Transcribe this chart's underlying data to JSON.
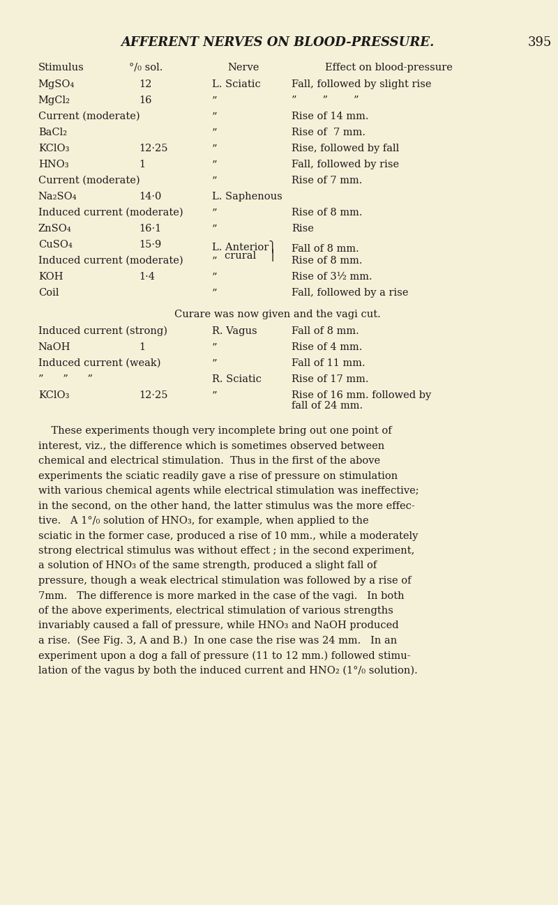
{
  "bg_color": "#f5f0d8",
  "text_color": "#1a1a1a",
  "page_title": "AFFERENT NERVES ON BLOOD-PRESSURE.",
  "page_number": "395",
  "col_headers": [
    "Stimulus",
    "°/₀ sol.",
    "Nerve",
    "Effect on blood-pressure"
  ],
  "table_rows": [
    {
      "stimulus": "MgSO₄",
      "sol": "12",
      "nerve": "L. Sciatic",
      "effect": "Fall, followed by slight rise"
    },
    {
      "stimulus": "MgCl₂",
      "sol": "16",
      "nerve": "”",
      "effect": "”        ”        ”"
    },
    {
      "stimulus": "Current (moderate)",
      "sol": "",
      "nerve": "”",
      "effect": "Rise of 14 mm."
    },
    {
      "stimulus": "BaCl₂",
      "sol": "",
      "nerve": "”",
      "effect": "Rise of  7 mm."
    },
    {
      "stimulus": "KClO₃",
      "sol": "12·25",
      "nerve": "”",
      "effect": "Rise, followed by fall"
    },
    {
      "stimulus": "HNO₃",
      "sol": "1",
      "nerve": "”",
      "effect": "Fall, followed by rise"
    },
    {
      "stimulus": "Current (moderate)",
      "sol": "",
      "nerve": "”",
      "effect": "Rise of 7 mm."
    },
    {
      "stimulus": "Na₂SO₄",
      "sol": "14·0",
      "nerve": "L. Saphenous",
      "effect": ""
    },
    {
      "stimulus": "Induced current (moderate)",
      "sol": "",
      "nerve": "”",
      "effect": "Rise of 8 mm."
    },
    {
      "stimulus": "ZnSO₄",
      "sol": "16·1",
      "nerve": "”",
      "effect": "Rise"
    },
    {
      "stimulus": "CuSO₄",
      "sol": "15·9",
      "nerve": "L. Anterior}\n    crural  {",
      "effect": "Fall of 8 mm."
    },
    {
      "stimulus": "Induced current (moderate)",
      "sol": "",
      "nerve": "”",
      "effect": "Rise of 8 mm."
    },
    {
      "stimulus": "KOH",
      "sol": "1·4",
      "nerve": "”",
      "effect": "Rise of 3½ mm."
    },
    {
      "stimulus": "Coil",
      "sol": "",
      "nerve": "”",
      "effect": "Fall, followed by a rise"
    }
  ],
  "curare_text": "Curare was now given and the vagi cut.",
  "table_rows2": [
    {
      "stimulus": "Induced current (strong)",
      "sol": "",
      "nerve": "R. Vagus",
      "effect": "Fall of 8 mm."
    },
    {
      "stimulus": "NaOH",
      "sol": "1",
      "nerve": "”",
      "effect": "Rise of 4 mm."
    },
    {
      "stimulus": "Induced current (weak)",
      "sol": "",
      "nerve": "”",
      "effect": "Fall of 11 mm."
    },
    {
      "stimulus": "”      ”      ”",
      "sol": "",
      "nerve": "R. Sciatic",
      "effect": "Rise of 17 mm."
    },
    {
      "stimulus": "KClO₃",
      "sol": "12·25",
      "nerve": "”",
      "effect": "Rise of 16 mm. followed by\nfall of 24 mm."
    }
  ],
  "body_text": [
    "    These experiments though very incomplete bring out one point of",
    "interest, viz., the difference which is sometimes observed between",
    "chemical and electrical stimulation.  Thus in the first of the above",
    "experiments the sciatic readily gave a rise of pressure on stimulation",
    "with various chemical agents while electrical stimulation was ineffective;",
    "in the second, on the other hand, the latter stimulus was the more effec-",
    "tive.   A 1°/₀ solution of HNO₃, for example, when applied to the",
    "sciatic in the former case, produced a rise of 10 mm., while a moderately",
    "strong electrical stimulus was without effect ; in the second experiment,",
    "a solution of HNO₃ of the same strength, produced a slight fall of",
    "pressure, though a weak electrical stimulation was followed by a rise of",
    "7mm.   The difference is more marked in the case of the vagi.   In both",
    "of the above experiments, electrical stimulation of various strengths",
    "invariably caused a fall of pressure, while HNO₃ and NaOH produced",
    "a rise.  (See Fig. 3, A and B.)  In one case the rise was 24 mm.   In an",
    "experiment upon a dog a fall of pressure (11 to 12 mm.) followed stimu-",
    "lation of the vagus by both the induced current and HNO₂ (1°/₀ solution)."
  ]
}
